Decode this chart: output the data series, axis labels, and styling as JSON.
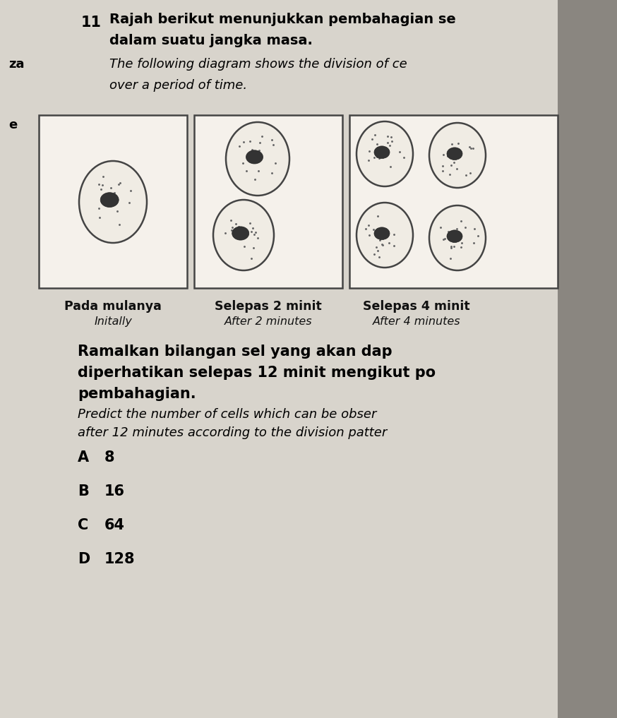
{
  "page_bg": "#d8d4cc",
  "content_bg": "#ddd9d1",
  "right_bar_color": "#8a8680",
  "question_num": "11",
  "title_line1": "Rajah berikut menunjukkan pembahagian se",
  "title_line2": "dalam suatu jangka masa.",
  "title_line3": "The following diagram shows the division of ce",
  "title_line4": "over a period of time.",
  "box_labels_malay": [
    "Pada mulanya",
    "Selepas 2 minit",
    "Selepas 4 minit"
  ],
  "box_labels_english": [
    "Initally",
    "After 2 minutes",
    "After 4 minutes"
  ],
  "q_malay_line1": "Ramalkan bilangan sel yang akan dap",
  "q_malay_line2": "diperhatikan selepas 12 minit mengikut po",
  "q_malay_line3": "pembahagian.",
  "q_english_line1": "Predict the number of cells which can be obser",
  "q_english_line2": "after 12 minutes according to the division patter",
  "options_letter": [
    "A",
    "B",
    "C",
    "D"
  ],
  "options_value": [
    "8",
    "16",
    "64",
    "128"
  ],
  "side_label_za": "za",
  "side_label_e": "e"
}
